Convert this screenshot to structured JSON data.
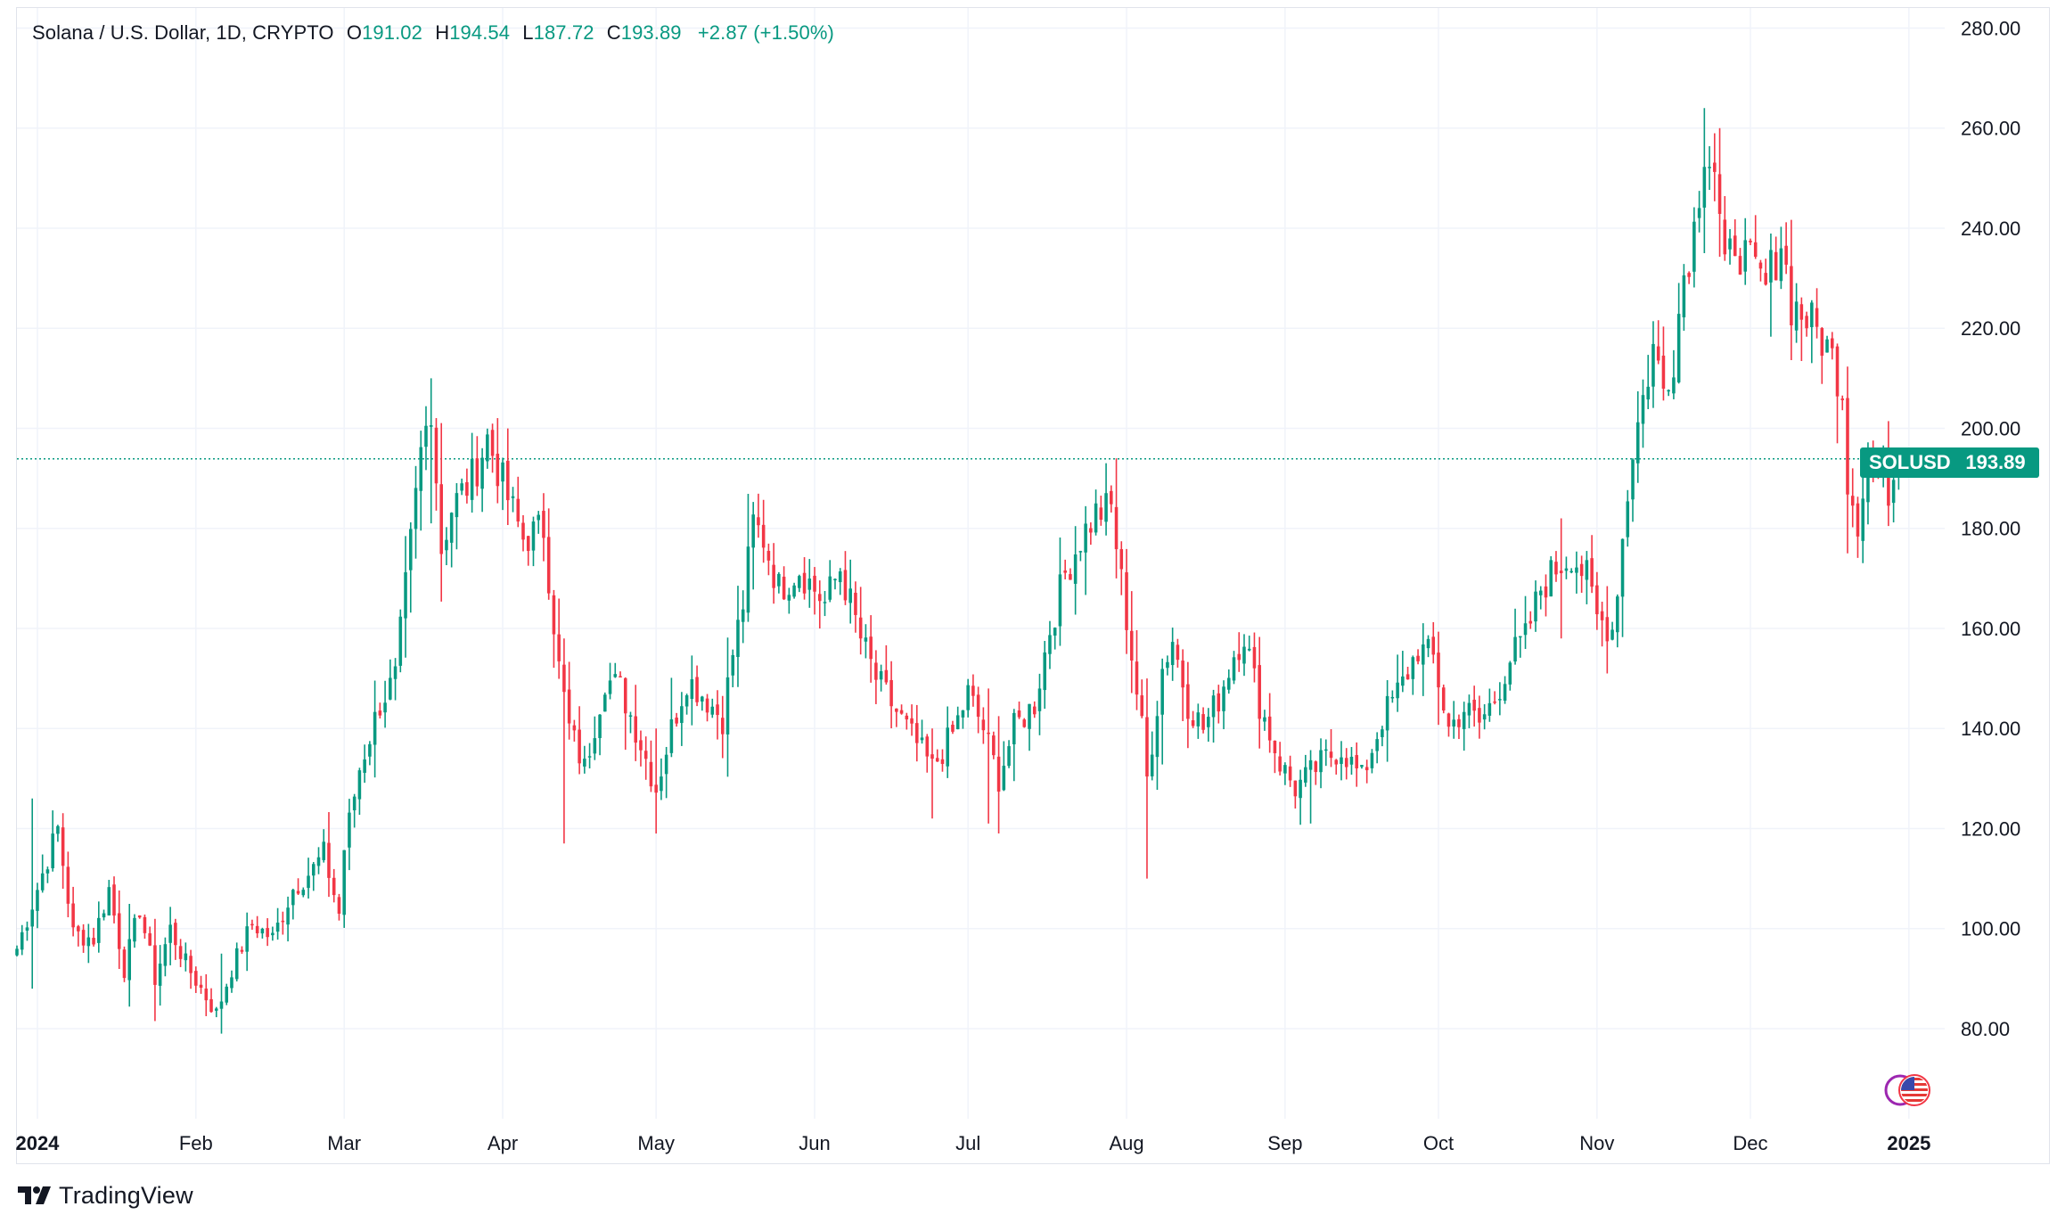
{
  "legend": {
    "symbol": "Solana / U.S. Dollar, 1D, CRYPTO",
    "o_label": "O",
    "o_value": "191.02",
    "h_label": "H",
    "h_value": "194.54",
    "l_label": "L",
    "l_value": "187.72",
    "c_label": "C",
    "c_value": "193.89",
    "change": "+2.87 (+1.50%)"
  },
  "badges": {
    "ticker": "SOLUSD",
    "price": "193.89"
  },
  "footer": {
    "brand": "TradingView"
  },
  "colors": {
    "up": "#089981",
    "down": "#f23645",
    "grid": "#f0f3fa",
    "text": "#131722"
  },
  "icons": {
    "brand_logo": "tradingview-logo-icon",
    "flags": "us-flag-icon"
  },
  "chart_data": {
    "type": "candlestick",
    "interval": "1D",
    "x_ticks": [
      {
        "label": "2024",
        "date": "2024-01-01",
        "bold": true
      },
      {
        "label": "Feb",
        "date": "2024-02-01"
      },
      {
        "label": "Mar",
        "date": "2024-03-01"
      },
      {
        "label": "Apr",
        "date": "2024-04-01"
      },
      {
        "label": "May",
        "date": "2024-05-01"
      },
      {
        "label": "Jun",
        "date": "2024-06-01"
      },
      {
        "label": "Jul",
        "date": "2024-07-01"
      },
      {
        "label": "Aug",
        "date": "2024-08-01"
      },
      {
        "label": "Sep",
        "date": "2024-09-01"
      },
      {
        "label": "Oct",
        "date": "2024-10-01"
      },
      {
        "label": "Nov",
        "date": "2024-11-01"
      },
      {
        "label": "Dec",
        "date": "2024-12-01"
      },
      {
        "label": "2025",
        "date": "2025-01-01",
        "bold": true
      }
    ],
    "y_ticks": [
      "80.00",
      "100.00",
      "120.00",
      "140.00",
      "160.00",
      "180.00",
      "200.00",
      "220.00",
      "240.00",
      "260.00",
      "280.00"
    ],
    "ylim": [
      62,
      284
    ],
    "xlim": [
      "2023-12-28",
      "2025-01-08"
    ],
    "last_price": 193.89,
    "price_path": [
      [
        "2023-12-28",
        96
      ],
      [
        "2023-12-31",
        105
      ],
      [
        "2024-01-03",
        114
      ],
      [
        "2024-01-05",
        120
      ],
      [
        "2024-01-08",
        99
      ],
      [
        "2024-01-12",
        98
      ],
      [
        "2024-01-15",
        108
      ],
      [
        "2024-01-18",
        92
      ],
      [
        "2024-01-21",
        104
      ],
      [
        "2024-01-24",
        90
      ],
      [
        "2024-01-27",
        100
      ],
      [
        "2024-01-30",
        93
      ],
      [
        "2024-02-02",
        88
      ],
      [
        "2024-02-05",
        83
      ],
      [
        "2024-02-08",
        92
      ],
      [
        "2024-02-12",
        101
      ],
      [
        "2024-02-16",
        98
      ],
      [
        "2024-02-20",
        108
      ],
      [
        "2024-02-24",
        112
      ],
      [
        "2024-02-26",
        115
      ],
      [
        "2024-02-29",
        103
      ],
      [
        "2024-03-01",
        116
      ],
      [
        "2024-03-04",
        132
      ],
      [
        "2024-03-08",
        145
      ],
      [
        "2024-03-11",
        150
      ],
      [
        "2024-03-13",
        168
      ],
      [
        "2024-03-16",
        195
      ],
      [
        "2024-03-18",
        205
      ],
      [
        "2024-03-20",
        176
      ],
      [
        "2024-03-22",
        184
      ],
      [
        "2024-03-26",
        190
      ],
      [
        "2024-03-29",
        198
      ],
      [
        "2024-04-02",
        186
      ],
      [
        "2024-04-05",
        178
      ],
      [
        "2024-04-09",
        180
      ],
      [
        "2024-04-12",
        152
      ],
      [
        "2024-04-14",
        140
      ],
      [
        "2024-04-17",
        132
      ],
      [
        "2024-04-21",
        150
      ],
      [
        "2024-04-24",
        148
      ],
      [
        "2024-04-27",
        140
      ],
      [
        "2024-05-01",
        128
      ],
      [
        "2024-05-04",
        140
      ],
      [
        "2024-05-07",
        150
      ],
      [
        "2024-05-10",
        147
      ],
      [
        "2024-05-14",
        142
      ],
      [
        "2024-05-16",
        155
      ],
      [
        "2024-05-18",
        165
      ],
      [
        "2024-05-20",
        181
      ],
      [
        "2024-05-22",
        178
      ],
      [
        "2024-05-25",
        168
      ],
      [
        "2024-05-29",
        172
      ],
      [
        "2024-06-03",
        165
      ],
      [
        "2024-06-06",
        172
      ],
      [
        "2024-06-10",
        158
      ],
      [
        "2024-06-13",
        150
      ],
      [
        "2024-06-16",
        145
      ],
      [
        "2024-06-19",
        140
      ],
      [
        "2024-06-24",
        132
      ],
      [
        "2024-06-28",
        139
      ],
      [
        "2024-07-01",
        147
      ],
      [
        "2024-07-04",
        140
      ],
      [
        "2024-07-07",
        130
      ],
      [
        "2024-07-10",
        140
      ],
      [
        "2024-07-14",
        145
      ],
      [
        "2024-07-17",
        160
      ],
      [
        "2024-07-20",
        171
      ],
      [
        "2024-07-23",
        178
      ],
      [
        "2024-07-26",
        183
      ],
      [
        "2024-07-29",
        184
      ],
      [
        "2024-08-01",
        162
      ],
      [
        "2024-08-04",
        140
      ],
      [
        "2024-08-05",
        130
      ],
      [
        "2024-08-08",
        152
      ],
      [
        "2024-08-10",
        158
      ],
      [
        "2024-08-13",
        145
      ],
      [
        "2024-08-16",
        140
      ],
      [
        "2024-08-19",
        146
      ],
      [
        "2024-08-22",
        155
      ],
      [
        "2024-08-24",
        159
      ],
      [
        "2024-08-27",
        145
      ],
      [
        "2024-08-31",
        133
      ],
      [
        "2024-09-03",
        128
      ],
      [
        "2024-09-06",
        131
      ],
      [
        "2024-09-09",
        134
      ],
      [
        "2024-09-12",
        136
      ],
      [
        "2024-09-16",
        130
      ],
      [
        "2024-09-20",
        142
      ],
      [
        "2024-09-24",
        149
      ],
      [
        "2024-09-27",
        156
      ],
      [
        "2024-09-30",
        154
      ],
      [
        "2024-10-03",
        140
      ],
      [
        "2024-10-06",
        144
      ],
      [
        "2024-10-09",
        141
      ],
      [
        "2024-10-12",
        146
      ],
      [
        "2024-10-15",
        154
      ],
      [
        "2024-10-18",
        158
      ],
      [
        "2024-10-21",
        168
      ],
      [
        "2024-10-24",
        172
      ],
      [
        "2024-10-27",
        175
      ],
      [
        "2024-10-30",
        170
      ],
      [
        "2024-11-01",
        162
      ],
      [
        "2024-11-04",
        160
      ],
      [
        "2024-11-06",
        178
      ],
      [
        "2024-11-08",
        196
      ],
      [
        "2024-11-10",
        206
      ],
      [
        "2024-11-12",
        216
      ],
      [
        "2024-11-14",
        208
      ],
      [
        "2024-11-16",
        215
      ],
      [
        "2024-11-18",
        231
      ],
      [
        "2024-11-20",
        240
      ],
      [
        "2024-11-22",
        257
      ],
      [
        "2024-11-24",
        252
      ],
      [
        "2024-11-26",
        230
      ],
      [
        "2024-11-28",
        238
      ],
      [
        "2024-12-01",
        232
      ],
      [
        "2024-12-04",
        228
      ],
      [
        "2024-12-07",
        238
      ],
      [
        "2024-12-09",
        225
      ],
      [
        "2024-12-12",
        222
      ],
      [
        "2024-12-15",
        218
      ],
      [
        "2024-12-17",
        214
      ],
      [
        "2024-12-19",
        208
      ],
      [
        "2024-12-20",
        190
      ],
      [
        "2024-12-22",
        182
      ],
      [
        "2024-12-24",
        194
      ],
      [
        "2024-12-26",
        190
      ],
      [
        "2024-12-28",
        188
      ],
      [
        "2024-12-30",
        193.89
      ]
    ],
    "extreme_wicks": [
      [
        "2023-12-31",
        88,
        126
      ],
      [
        "2024-02-06",
        79,
        95
      ],
      [
        "2024-03-18",
        181,
        210
      ],
      [
        "2024-04-13",
        117,
        158
      ],
      [
        "2024-05-01",
        119,
        140
      ],
      [
        "2024-06-24",
        122,
        140
      ],
      [
        "2024-07-05",
        121,
        148
      ],
      [
        "2024-07-30",
        170,
        194
      ],
      [
        "2024-08-05",
        110,
        150
      ],
      [
        "2024-09-06",
        121,
        135
      ],
      [
        "2024-10-25",
        158,
        182
      ],
      [
        "2024-11-22",
        235,
        264
      ],
      [
        "2024-12-20",
        175,
        208
      ]
    ]
  }
}
